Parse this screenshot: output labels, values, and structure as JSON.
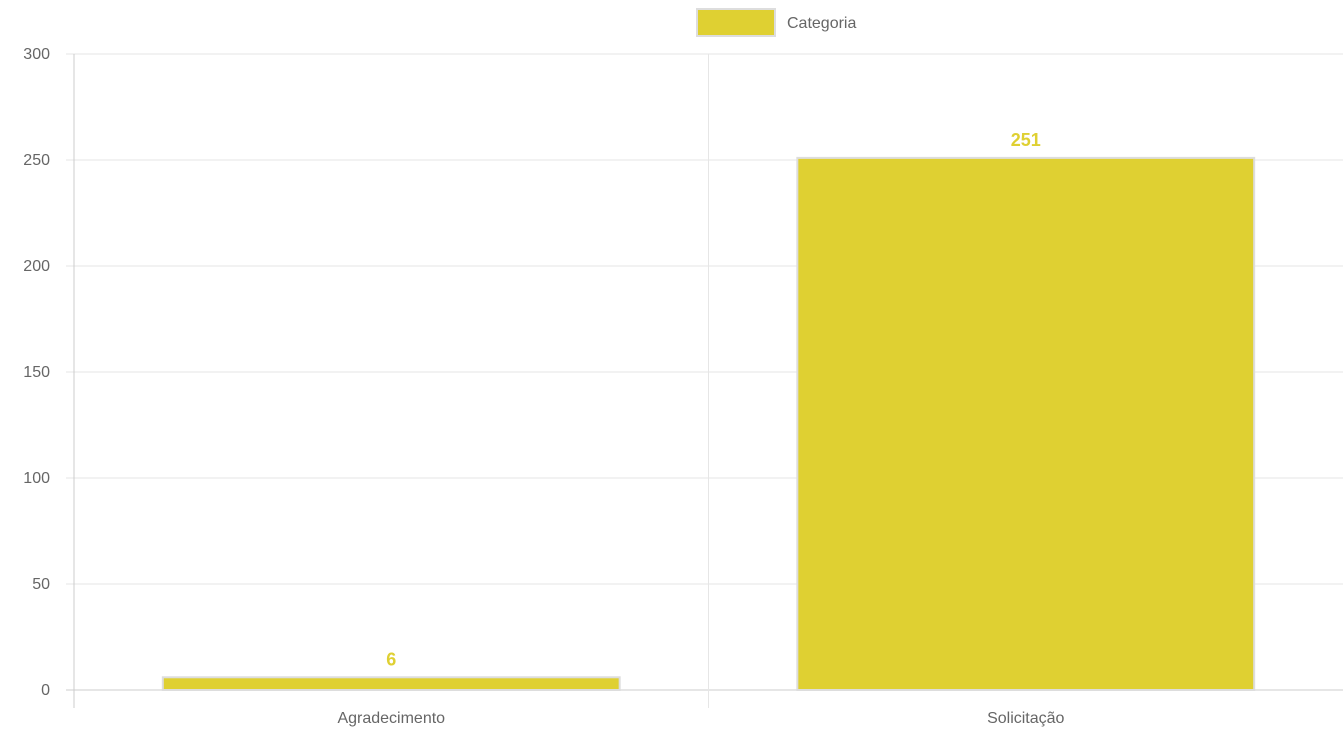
{
  "chart_data": {
    "type": "bar",
    "categories": [
      "Agradecimento",
      "Solicitação"
    ],
    "series": [
      {
        "name": "Categoria",
        "values": [
          6,
          251
        ],
        "color": "#dfd032"
      }
    ],
    "title": "",
    "xlabel": "",
    "ylabel": "",
    "ylim": [
      0,
      300
    ],
    "yticks": [
      "0",
      "50",
      "100",
      "150",
      "200",
      "250",
      "300"
    ],
    "data_labels": [
      "6",
      "251"
    ],
    "grid": true,
    "legend_position": "top-center"
  },
  "colors": {
    "bar_fill": "#dfd032",
    "bar_border": "#dddddd",
    "data_label": "#dfd032",
    "grid": "#e6e6e6",
    "axis": "#cccccc",
    "text": "#666666"
  }
}
